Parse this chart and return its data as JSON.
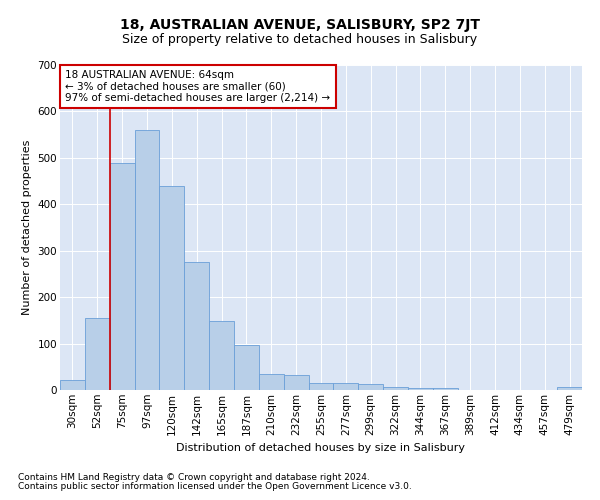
{
  "title": "18, AUSTRALIAN AVENUE, SALISBURY, SP2 7JT",
  "subtitle": "Size of property relative to detached houses in Salisbury",
  "xlabel": "Distribution of detached houses by size in Salisbury",
  "ylabel": "Number of detached properties",
  "footnote1": "Contains HM Land Registry data © Crown copyright and database right 2024.",
  "footnote2": "Contains public sector information licensed under the Open Government Licence v3.0.",
  "categories": [
    "30sqm",
    "52sqm",
    "75sqm",
    "97sqm",
    "120sqm",
    "142sqm",
    "165sqm",
    "187sqm",
    "210sqm",
    "232sqm",
    "255sqm",
    "277sqm",
    "299sqm",
    "322sqm",
    "344sqm",
    "367sqm",
    "389sqm",
    "412sqm",
    "434sqm",
    "457sqm",
    "479sqm"
  ],
  "values": [
    22,
    155,
    490,
    560,
    440,
    275,
    148,
    98,
    35,
    33,
    15,
    15,
    12,
    7,
    5,
    5,
    0,
    0,
    0,
    0,
    7
  ],
  "bar_color": "#b8cfe8",
  "bar_edge_color": "#6a9fd8",
  "bar_edge_width": 0.6,
  "vline_color": "#cc0000",
  "vline_x": 1.5,
  "annotation_line1": "18 AUSTRALIAN AVENUE: 64sqm",
  "annotation_line2": "← 3% of detached houses are smaller (60)",
  "annotation_line3": "97% of semi-detached houses are larger (2,214) →",
  "annotation_box_edgecolor": "#cc0000",
  "annotation_box_facecolor": "#ffffff",
  "ylim": [
    0,
    700
  ],
  "yticks": [
    0,
    100,
    200,
    300,
    400,
    500,
    600,
    700
  ],
  "plot_bg_color": "#dce6f5",
  "grid_color": "#ffffff",
  "title_fontsize": 10,
  "subtitle_fontsize": 9,
  "axis_label_fontsize": 8,
  "tick_fontsize": 7.5,
  "annotation_fontsize": 7.5,
  "footnote_fontsize": 6.5
}
